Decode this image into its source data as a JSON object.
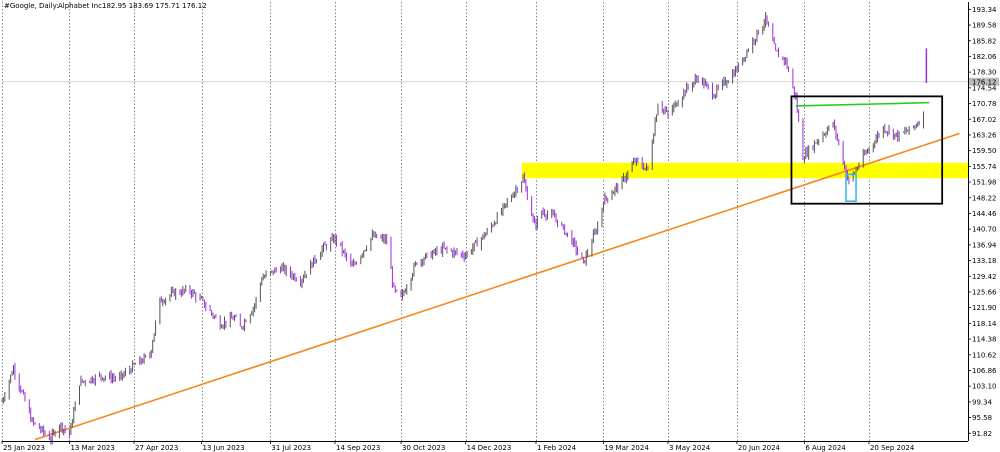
{
  "header": {
    "symbol": "#Google, Daily:",
    "name": "Alphabet Inc.",
    "ohlc": "182.95 183.69 175.71 176.12"
  },
  "colors": {
    "up_candle": "#555555",
    "down_candle": "#9b30d9",
    "trendline": "#f5871f",
    "support_zone": "#ffff00",
    "resistance_line": "#22cc22",
    "box": "#000000",
    "highlight_box": "#29b6f6",
    "grid": "#555555"
  },
  "chart_data": {
    "type": "candlestick",
    "title": "",
    "xlabel": "",
    "ylabel": "",
    "ylim": [
      89.97,
      195.1
    ],
    "y_ticks": [
      193.34,
      189.58,
      185.82,
      182.06,
      178.3,
      174.54,
      170.78,
      167.02,
      163.26,
      159.5,
      155.74,
      151.98,
      148.22,
      144.46,
      140.7,
      136.94,
      133.18,
      129.42,
      125.66,
      121.9,
      118.14,
      114.38,
      110.62,
      106.86,
      103.1,
      99.34,
      95.58,
      91.82
    ],
    "x_labels": [
      "25 Jan 2023",
      "13 Mar 2023",
      "27 Apr 2023",
      "13 Jun 2023",
      "31 Jul 2023",
      "14 Sep 2023",
      "30 Oct 2023",
      "14 Dec 2023",
      "1 Feb 2024",
      "19 Mar 2024",
      "3 May 2024",
      "20 Jun 2024",
      "6 Aug 2024",
      "20 Sep 2024"
    ],
    "last_price": "176.12",
    "price_path": [
      [
        "2023-01-25",
        99.5
      ],
      [
        "2023-02-02",
        107.5
      ],
      [
        "2023-02-15",
        94.5
      ],
      [
        "2023-02-28",
        90.5
      ],
      [
        "2023-03-06",
        94.0
      ],
      [
        "2023-03-13",
        91.5
      ],
      [
        "2023-03-20",
        104.0
      ],
      [
        "2023-04-03",
        105.5
      ],
      [
        "2023-04-17",
        105.0
      ],
      [
        "2023-04-27",
        108.0
      ],
      [
        "2023-05-08",
        110.5
      ],
      [
        "2023-05-15",
        123.5
      ],
      [
        "2023-05-25",
        125.5
      ],
      [
        "2023-06-05",
        126.0
      ],
      [
        "2023-06-13",
        123.5
      ],
      [
        "2023-06-26",
        118.0
      ],
      [
        "2023-07-06",
        119.5
      ],
      [
        "2023-07-10",
        117.0
      ],
      [
        "2023-07-20",
        122.5
      ],
      [
        "2023-07-25",
        129.0
      ],
      [
        "2023-08-07",
        131.5
      ],
      [
        "2023-08-21",
        128.5
      ],
      [
        "2023-09-05",
        136.0
      ],
      [
        "2023-09-14",
        138.5
      ],
      [
        "2023-09-26",
        131.5
      ],
      [
        "2023-10-10",
        139.0
      ],
      [
        "2023-10-20",
        138.0
      ],
      [
        "2023-10-25",
        126.0
      ],
      [
        "2023-10-30",
        124.0
      ],
      [
        "2023-11-10",
        133.0
      ],
      [
        "2023-11-28",
        136.0
      ],
      [
        "2023-12-07",
        135.0
      ],
      [
        "2023-12-14",
        134.5
      ],
      [
        "2023-12-29",
        140.0
      ],
      [
        "2024-01-10",
        146.0
      ],
      [
        "2024-01-23",
        153.0
      ],
      [
        "2024-01-31",
        141.5
      ],
      [
        "2024-02-05",
        145.0
      ],
      [
        "2024-02-14",
        143.5
      ],
      [
        "2024-02-26",
        138.0
      ],
      [
        "2024-03-05",
        132.5
      ],
      [
        "2024-03-15",
        141.5
      ],
      [
        "2024-03-19",
        147.5
      ],
      [
        "2024-04-01",
        152.0
      ],
      [
        "2024-04-10",
        157.0
      ],
      [
        "2024-04-19",
        155.0
      ],
      [
        "2024-04-26",
        171.0
      ],
      [
        "2024-05-03",
        168.0
      ],
      [
        "2024-05-15",
        174.0
      ],
      [
        "2024-05-24",
        177.0
      ],
      [
        "2024-06-04",
        173.0
      ],
      [
        "2024-06-12",
        176.0
      ],
      [
        "2024-06-20",
        179.0
      ],
      [
        "2024-06-28",
        184.0
      ],
      [
        "2024-07-10",
        191.0
      ],
      [
        "2024-07-17",
        183.0
      ],
      [
        "2024-07-24",
        181.0
      ],
      [
        "2024-07-31",
        172.0
      ],
      [
        "2024-08-05",
        158.0
      ],
      [
        "2024-08-15",
        162.0
      ],
      [
        "2024-08-26",
        166.0
      ],
      [
        "2024-09-06",
        152.0
      ],
      [
        "2024-09-16",
        158.0
      ],
      [
        "2024-09-30",
        165.0
      ],
      [
        "2024-10-10",
        163.0
      ],
      [
        "2024-10-21",
        165.0
      ],
      [
        "2024-10-28",
        168.0
      ]
    ]
  }
}
